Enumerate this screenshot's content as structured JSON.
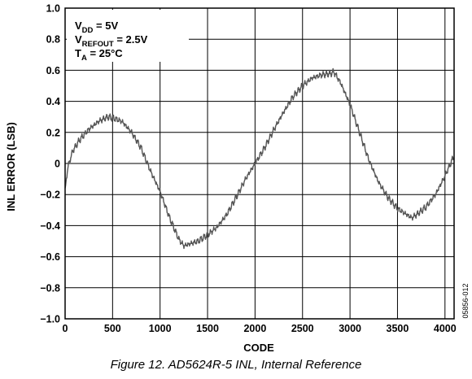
{
  "caption": "Figure 12. AD5624R-5 INL, Internal Reference",
  "figure_id": "05856-012",
  "conditions": [
    {
      "main": "V",
      "sub": "DD",
      "rest": " = 5V"
    },
    {
      "main": "V",
      "sub": "REFOUT",
      "rest": " = 2.5V"
    },
    {
      "main": "T",
      "sub": "A",
      "rest": " = 25°C"
    }
  ],
  "chart_data": {
    "type": "line",
    "xlabel": "CODE",
    "ylabel": "INL ERROR (LSB)",
    "xlim": [
      0,
      4096
    ],
    "ylim": [
      -1.0,
      1.0
    ],
    "x_ticks": [
      0,
      500,
      1000,
      1500,
      2000,
      2500,
      3000,
      3500,
      4000
    ],
    "x_tick_labels": [
      "0",
      "500",
      "1000",
      "1500",
      "2000",
      "2500",
      "3000",
      "3500",
      "4000"
    ],
    "y_ticks": [
      1.0,
      0.8,
      0.6,
      0.4,
      0.2,
      0,
      -0.2,
      -0.4,
      -0.6,
      -0.8,
      -1.0
    ],
    "y_tick_labels": [
      "1.0",
      "0.8",
      "0.6",
      "0.4",
      "0.2",
      "0",
      "−0.2",
      "−0.4",
      "−0.6",
      "−0.8",
      "−1.0"
    ],
    "grid": true,
    "series_color": "#555555",
    "series": [
      {
        "x": [
          0,
          30,
          80,
          150,
          250,
          350,
          450,
          520,
          600,
          700,
          800,
          900,
          1000,
          1100,
          1200,
          1250,
          1300,
          1400,
          1500,
          1600,
          1700,
          1800,
          1900,
          2000,
          2100,
          2200,
          2300,
          2400,
          2500,
          2600,
          2700,
          2800,
          2830,
          2900,
          3000,
          3100,
          3200,
          3300,
          3400,
          3500,
          3600,
          3650,
          3700,
          3800,
          3900,
          4000,
          4095
        ],
        "y": [
          -0.17,
          -0.02,
          0.08,
          0.15,
          0.22,
          0.27,
          0.3,
          0.29,
          0.27,
          0.2,
          0.1,
          -0.05,
          -0.18,
          -0.35,
          -0.49,
          -0.53,
          -0.52,
          -0.5,
          -0.46,
          -0.41,
          -0.33,
          -0.22,
          -0.1,
          0.0,
          0.1,
          0.22,
          0.33,
          0.43,
          0.5,
          0.55,
          0.57,
          0.58,
          0.59,
          0.52,
          0.38,
          0.2,
          0.02,
          -0.12,
          -0.22,
          -0.29,
          -0.33,
          -0.35,
          -0.33,
          -0.28,
          -0.2,
          -0.08,
          0.05
        ]
      }
    ]
  }
}
